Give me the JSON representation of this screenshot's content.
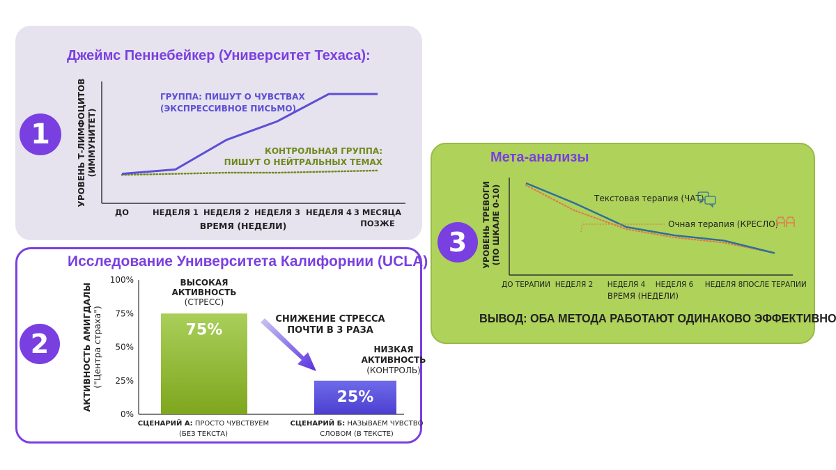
{
  "panel1": {
    "badge": "1",
    "title": "Джеймс Пеннебейкер (Университет Техаса):"
  },
  "panel2": {
    "badge": "2",
    "title": "Исследование Университета Калифорнии (UCLA)"
  },
  "panel3": {
    "badge": "3",
    "title": "Мета-анализы",
    "conclusion": "ВЫВОД: ОБА МЕТОДА РАБОТАЮТ ОДИНАКОВО ЭФФЕКТИВНО"
  },
  "colors": {
    "purple": "#7a3fe0",
    "line_purple": "#5d4fd6",
    "olive": "#6f8a1a",
    "green": "#aed25a",
    "blue_line": "#2f6f9a",
    "orange_dotted": "#e07a4a"
  },
  "chart_data": [
    {
      "type": "line",
      "title": "Джеймс Пеннебейкер (Университет Техаса):",
      "xlabel": "ВРЕМЯ (НЕДЕЛИ)",
      "ylabel": [
        "УРОВЕНЬ Т-ЛИМФОЦИТОВ",
        "(ИММУНИТЕТ)"
      ],
      "categories": [
        "ДО",
        "НЕДЕЛЯ 1",
        "НЕДЕЛЯ 2",
        "НЕДЕЛЯ 3",
        "НЕДЕЛЯ 4",
        "3 МЕСЯЦА ПОЗЖЕ"
      ],
      "ylim": [
        0,
        100
      ],
      "grid": false,
      "series": [
        {
          "name": "ГРУППА: ПИШУТ О ЧУВСТВАХ (ЭКСПРЕССИВНОЕ ПИСЬМО)",
          "label_lines": [
            "ГРУППА: ПИШУТ О ЧУВСТВАХ",
            "(ЭКСПРЕССИВНОЕ ПИСЬМО)"
          ],
          "values": [
            27,
            31,
            58,
            75,
            100,
            100
          ],
          "style": "solid"
        },
        {
          "name": "КОНТРОЛЬНАЯ ГРУППА: ПИШУТ О НЕЙТРАЛЬНЫХ ТЕМАХ",
          "label_lines": [
            "КОНТРОЛЬНАЯ ГРУППА:",
            "ПИШУТ О НЕЙТРАЛЬНЫХ ТЕМАХ"
          ],
          "values": [
            26,
            27,
            28,
            28,
            29,
            30
          ],
          "style": "dotted"
        }
      ]
    },
    {
      "type": "bar",
      "title": "Исследование Университета Калифорнии (UCLA)",
      "ylabel": [
        "АКТИВНОСТЬ АМИГДАЛЫ",
        "(\"Центра страха\")"
      ],
      "yticks": [
        "0%",
        "25%",
        "50%",
        "75%",
        "100%"
      ],
      "ylim": [
        0,
        100
      ],
      "categories": [
        {
          "bold": "СЦЕНАРИЙ А:",
          "rest": " ПРОСТО ЧУВСТВУЕМ",
          "line2": "(БЕЗ ТЕКСТА)"
        },
        {
          "bold": "СЦЕНАРИЙ Б:",
          "rest": " НАЗЫВАЕМ ЧУВСТВО",
          "line2": "СЛОВОМ (В ТЕКСТЕ)"
        }
      ],
      "values": [
        75,
        25
      ],
      "data_labels": [
        "75%",
        "25%"
      ],
      "bar_annotations": [
        [
          "ВЫСОКАЯ",
          "АКТИВНОСТЬ",
          "(СТРЕСС)"
        ],
        [
          "НИЗКАЯ",
          "АКТИВНОСТЬ",
          "(КОНТРОЛЬ)"
        ]
      ],
      "arrow_label": [
        "СНИЖЕНИЕ СТРЕССА",
        "ПОЧТИ В 3 РАЗА"
      ]
    },
    {
      "type": "line",
      "title": "Мета-анализы",
      "xlabel": "ВРЕМЯ (НЕДЕЛИ)",
      "ylabel": [
        "УРОВЕНЬ ТРЕВОГИ",
        "(ПО ШКАЛЕ 0-10)"
      ],
      "categories": [
        "ДО ТЕРАПИИ",
        "НЕДЕЛЯ 2",
        "НЕДЕЛЯ 4",
        "НЕДЕЛЯ 6",
        "НЕДЕЛЯ 8",
        "ПОСЛЕ ТЕРАПИИ"
      ],
      "ylim": [
        0,
        10
      ],
      "grid": false,
      "series": [
        {
          "name": "Текстовая терапия (ЧАТ)",
          "values": [
            8.8,
            6.9,
            4.6,
            3.8,
            3.3,
            2.1
          ],
          "style": "solid",
          "icon": "chat-bubbles-icon"
        },
        {
          "name": "Очная терапия (КРЕСЛО)",
          "values": [
            8.6,
            6.2,
            4.4,
            3.6,
            3.1,
            2.1
          ],
          "style": "dotted",
          "icon": "armchairs-icon"
        }
      ]
    }
  ]
}
